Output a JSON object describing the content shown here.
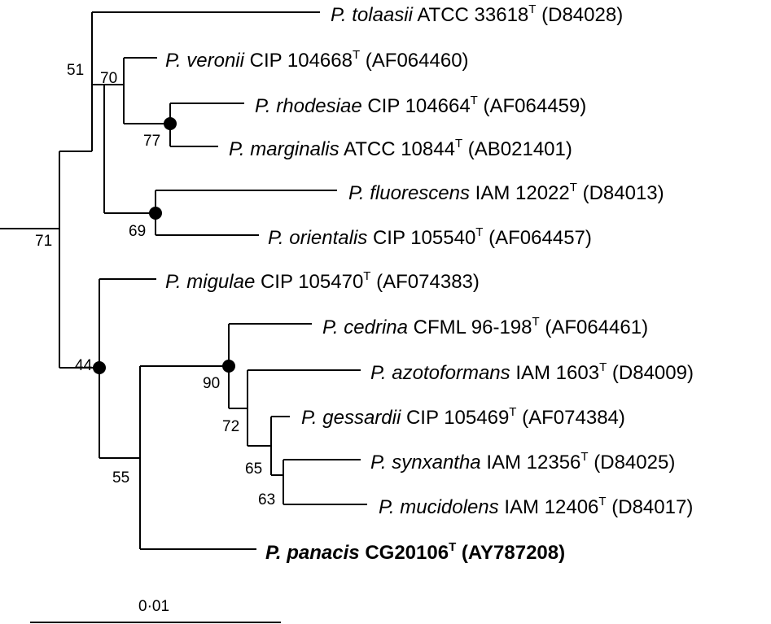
{
  "tree": {
    "taxa": {
      "tolaasii": {
        "species": "P. tolaasii",
        "strain": "ATCC 33618",
        "type_mark": "T",
        "accession": "(D84028)"
      },
      "veronii": {
        "species": "P. veronii",
        "strain": "CIP 104668",
        "type_mark": "T",
        "accession": "(AF064460)"
      },
      "rhodesiae": {
        "species": "P. rhodesiae",
        "strain": "CIP 104664",
        "type_mark": "T",
        "accession": "(AF064459)"
      },
      "marginalis": {
        "species": "P. marginalis",
        "strain": "ATCC 10844",
        "type_mark": "T",
        "accession": "(AB021401)"
      },
      "fluorescens": {
        "species": "P. fluorescens",
        "strain": "IAM 12022",
        "type_mark": "T",
        "accession": "(D84013)"
      },
      "orientalis": {
        "species": "P. orientalis",
        "strain": "CIP 105540",
        "type_mark": "T",
        "accession": "(AF064457)"
      },
      "migulae": {
        "species": "P. migulae",
        "strain": "CIP 105470",
        "type_mark": "T",
        "accession": "(AF074383)"
      },
      "cedrina": {
        "species": "P. cedrina",
        "strain": "CFML 96-198",
        "type_mark": "T",
        "accession": "(AF064461)"
      },
      "azotoformans": {
        "species": "P. azotoformans",
        "strain": "IAM 1603",
        "type_mark": "T",
        "accession": "(D84009)"
      },
      "gessardii": {
        "species": "P. gessardii",
        "strain": "CIP 105469",
        "type_mark": "T",
        "accession": "(AF074384)"
      },
      "synxantha": {
        "species": "P. synxantha",
        "strain": "IAM 12356",
        "type_mark": "T",
        "accession": "(D84025)"
      },
      "mucidolens": {
        "species": "P. mucidolens",
        "strain": "IAM 12406",
        "type_mark": "T",
        "accession": "(D84017)"
      },
      "panacis": {
        "species": "P. panacis",
        "strain": "CG20106",
        "type_mark": "T",
        "accession": "(AY787208)"
      }
    },
    "bootstrap": {
      "root_split": "71",
      "upper_clade": "51",
      "veronii_group": "70",
      "rhodesiae_marginalis": "77",
      "fluorescens_orientalis": "69",
      "lower_clade": "44",
      "panacis_group": "55",
      "cedrina_group": "90",
      "azotoformans_group": "72",
      "gessardii_group": "65",
      "synxantha_mucidolens": "63"
    },
    "scale_bar": {
      "label": "0·01",
      "value": 0.01
    }
  }
}
